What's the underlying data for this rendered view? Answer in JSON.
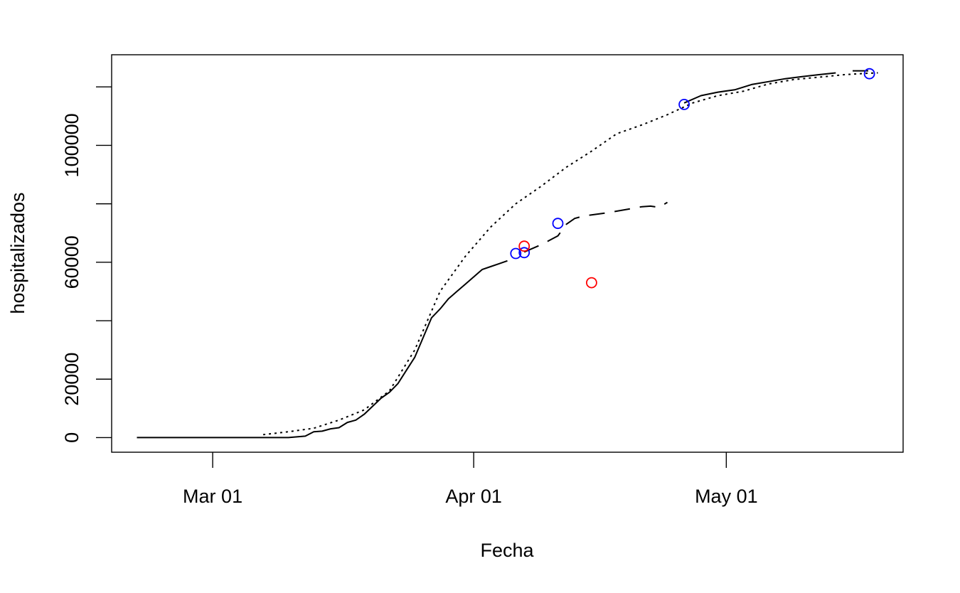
{
  "chart_data": {
    "type": "line",
    "xlabel": "Fecha",
    "ylabel": "hospitalizados",
    "xlim": [
      "2020-02-18",
      "2020-05-22"
    ],
    "ylim": [
      -5000,
      131000
    ],
    "x_ticks": [
      {
        "date": "2020-03-01",
        "label": "Mar 01"
      },
      {
        "date": "2020-04-01",
        "label": "Apr 01"
      },
      {
        "date": "2020-05-01",
        "label": "May 01"
      }
    ],
    "y_ticks": [
      {
        "value": 0,
        "label": "0"
      },
      {
        "value": 20000,
        "label": "20000"
      },
      {
        "value": 40000,
        "label": ""
      },
      {
        "value": 60000,
        "label": "60000"
      },
      {
        "value": 80000,
        "label": ""
      },
      {
        "value": 100000,
        "label": "100000"
      },
      {
        "value": 120000,
        "label": ""
      }
    ],
    "grid": false,
    "legend": "none",
    "series": [
      {
        "style": "solid",
        "color": "#000000",
        "points": [
          [
            "2020-02-21",
            0
          ],
          [
            "2020-03-10",
            0
          ],
          [
            "2020-03-12",
            500
          ],
          [
            "2020-03-13",
            2000
          ],
          [
            "2020-03-14",
            2200
          ],
          [
            "2020-03-15",
            3000
          ],
          [
            "2020-03-16",
            3400
          ],
          [
            "2020-03-17",
            5200
          ],
          [
            "2020-03-18",
            6000
          ],
          [
            "2020-03-19",
            8000
          ],
          [
            "2020-03-21",
            13500
          ],
          [
            "2020-03-22",
            15500
          ],
          [
            "2020-03-23",
            18500
          ],
          [
            "2020-03-24",
            23000
          ],
          [
            "2020-03-25",
            27500
          ],
          [
            "2020-03-27",
            41000
          ],
          [
            "2020-03-28",
            44000
          ],
          [
            "2020-03-29",
            47500
          ],
          [
            "2020-03-30",
            50000
          ],
          [
            "2020-03-31",
            52500
          ],
          [
            "2020-04-02",
            57500
          ],
          [
            "2020-04-03",
            58500
          ],
          [
            "2020-04-04",
            59500
          ],
          [
            "2020-04-05",
            60500
          ]
        ]
      },
      {
        "style": "dashed",
        "color": "#000000",
        "points": [
          [
            "2020-04-07",
            63500
          ],
          [
            "2020-04-09",
            66000
          ],
          [
            "2020-04-10",
            67500
          ],
          [
            "2020-04-11",
            69000
          ],
          [
            "2020-04-12",
            73000
          ],
          [
            "2020-04-13",
            75000
          ],
          [
            "2020-04-14",
            75800
          ],
          [
            "2020-04-15",
            76200
          ],
          [
            "2020-04-17",
            77000
          ],
          [
            "2020-04-20",
            78500
          ],
          [
            "2020-04-21",
            79000
          ],
          [
            "2020-04-22",
            79200
          ],
          [
            "2020-04-23",
            78800
          ],
          [
            "2020-04-24",
            80500
          ]
        ]
      },
      {
        "style": "solid",
        "color": "#000000",
        "points": [
          [
            "2020-04-26",
            114500
          ],
          [
            "2020-04-28",
            117000
          ],
          [
            "2020-04-30",
            118200
          ],
          [
            "2020-05-02",
            119000
          ],
          [
            "2020-05-04",
            120800
          ],
          [
            "2020-05-06",
            121800
          ],
          [
            "2020-05-08",
            122800
          ],
          [
            "2020-05-10",
            123500
          ],
          [
            "2020-05-12",
            124200
          ],
          [
            "2020-05-14",
            124800
          ]
        ]
      },
      {
        "style": "dashed",
        "color": "#000000",
        "points": [
          [
            "2020-05-16",
            125500
          ],
          [
            "2020-05-19",
            125500
          ]
        ]
      },
      {
        "style": "dotted",
        "color": "#000000",
        "points": [
          [
            "2020-03-07",
            1000
          ],
          [
            "2020-03-10",
            2000
          ],
          [
            "2020-03-13",
            3200
          ],
          [
            "2020-03-16",
            6000
          ],
          [
            "2020-03-19",
            9500
          ],
          [
            "2020-03-22",
            16000
          ],
          [
            "2020-03-25",
            30000
          ],
          [
            "2020-03-28",
            50000
          ],
          [
            "2020-03-31",
            62000
          ],
          [
            "2020-04-03",
            72000
          ],
          [
            "2020-04-06",
            80000
          ],
          [
            "2020-04-09",
            86000
          ],
          [
            "2020-04-12",
            92500
          ],
          [
            "2020-04-15",
            98000
          ],
          [
            "2020-04-18",
            104000
          ],
          [
            "2020-04-21",
            107000
          ],
          [
            "2020-04-24",
            110500
          ],
          [
            "2020-04-27",
            114500
          ],
          [
            "2020-04-30",
            117000
          ],
          [
            "2020-05-03",
            118500
          ],
          [
            "2020-05-06",
            121000
          ],
          [
            "2020-05-09",
            122500
          ],
          [
            "2020-05-12",
            123300
          ],
          [
            "2020-05-15",
            124200
          ],
          [
            "2020-05-18",
            124700
          ],
          [
            "2020-05-19",
            124800
          ]
        ]
      }
    ],
    "points": [
      {
        "date": "2020-04-06",
        "value": 63000,
        "color": "#0000ff"
      },
      {
        "date": "2020-04-07",
        "value": 63300,
        "color": "#0000ff"
      },
      {
        "date": "2020-04-07",
        "value": 65500,
        "color": "#ff0000"
      },
      {
        "date": "2020-04-11",
        "value": 73300,
        "color": "#0000ff"
      },
      {
        "date": "2020-04-15",
        "value": 53000,
        "color": "#ff0000"
      },
      {
        "date": "2020-04-26",
        "value": 114000,
        "color": "#0000ff"
      },
      {
        "date": "2020-05-18",
        "value": 124500,
        "color": "#0000ff"
      }
    ]
  }
}
